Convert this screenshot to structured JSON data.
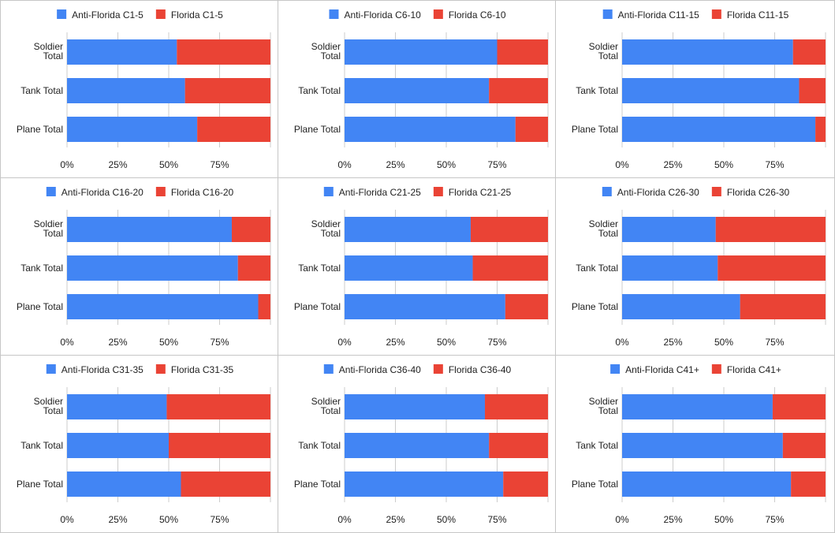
{
  "colors": {
    "anti": "#4285f4",
    "florida": "#ea4335",
    "grid": "#cccccc"
  },
  "chart_data": [
    {
      "type": "bar",
      "orientation": "horizontal",
      "stacked": "percent",
      "categories": [
        [
          "Soldier",
          "Total"
        ],
        [
          "Tank Total"
        ],
        [
          "Plane Total"
        ]
      ],
      "series": [
        {
          "name": "Anti-Florida C1-5",
          "values": [
            54,
            58,
            64
          ]
        },
        {
          "name": "Florida C1-5",
          "values": [
            46,
            42,
            36
          ]
        }
      ],
      "xticks": [
        "0%",
        "25%",
        "50%",
        "75%"
      ],
      "legend": "top"
    },
    {
      "type": "bar",
      "orientation": "horizontal",
      "stacked": "percent",
      "categories": [
        [
          "Soldier",
          "Total"
        ],
        [
          "Tank Total"
        ],
        [
          "Plane Total"
        ]
      ],
      "series": [
        {
          "name": "Anti-Florida C6-10",
          "values": [
            75,
            71,
            84
          ]
        },
        {
          "name": "Florida C6-10",
          "values": [
            25,
            29,
            16
          ]
        }
      ],
      "xticks": [
        "0%",
        "25%",
        "50%",
        "75%"
      ],
      "legend": "top"
    },
    {
      "type": "bar",
      "orientation": "horizontal",
      "stacked": "percent",
      "categories": [
        [
          "Soldier",
          "Total"
        ],
        [
          "Tank Total"
        ],
        [
          "Plane Total"
        ]
      ],
      "series": [
        {
          "name": "Anti-Florida C11-15",
          "values": [
            84,
            87,
            95
          ]
        },
        {
          "name": "Florida C11-15",
          "values": [
            16,
            13,
            5
          ]
        }
      ],
      "xticks": [
        "0%",
        "25%",
        "50%",
        "75%"
      ],
      "legend": "top"
    },
    {
      "type": "bar",
      "orientation": "horizontal",
      "stacked": "percent",
      "categories": [
        [
          "Soldier",
          "Total"
        ],
        [
          "Tank Total"
        ],
        [
          "Plane Total"
        ]
      ],
      "series": [
        {
          "name": "Anti-Florida C16-20",
          "values": [
            81,
            84,
            94
          ]
        },
        {
          "name": "Florida C16-20",
          "values": [
            19,
            16,
            6
          ]
        }
      ],
      "xticks": [
        "0%",
        "25%",
        "50%",
        "75%"
      ],
      "legend": "top"
    },
    {
      "type": "bar",
      "orientation": "horizontal",
      "stacked": "percent",
      "categories": [
        [
          "Soldier",
          "Total"
        ],
        [
          "Tank Total"
        ],
        [
          "Plane Total"
        ]
      ],
      "series": [
        {
          "name": "Anti-Florida C21-25",
          "values": [
            62,
            63,
            79
          ]
        },
        {
          "name": "Florida C21-25",
          "values": [
            38,
            37,
            21
          ]
        }
      ],
      "xticks": [
        "0%",
        "25%",
        "50%",
        "75%"
      ],
      "legend": "top"
    },
    {
      "type": "bar",
      "orientation": "horizontal",
      "stacked": "percent",
      "categories": [
        [
          "Soldier",
          "Total"
        ],
        [
          "Tank Total"
        ],
        [
          "Plane Total"
        ]
      ],
      "series": [
        {
          "name": "Anti-Florida C26-30",
          "values": [
            46,
            47,
            58
          ]
        },
        {
          "name": "Florida C26-30",
          "values": [
            54,
            53,
            42
          ]
        }
      ],
      "xticks": [
        "0%",
        "25%",
        "50%",
        "75%"
      ],
      "legend": "top"
    },
    {
      "type": "bar",
      "orientation": "horizontal",
      "stacked": "percent",
      "categories": [
        [
          "Soldier",
          "Total"
        ],
        [
          "Tank Total"
        ],
        [
          "Plane Total"
        ]
      ],
      "series": [
        {
          "name": "Anti-Florida C31-35",
          "values": [
            49,
            50,
            56
          ]
        },
        {
          "name": "Florida C31-35",
          "values": [
            51,
            50,
            44
          ]
        }
      ],
      "xticks": [
        "0%",
        "25%",
        "50%",
        "75%"
      ],
      "legend": "top"
    },
    {
      "type": "bar",
      "orientation": "horizontal",
      "stacked": "percent",
      "categories": [
        [
          "Soldier",
          "Total"
        ],
        [
          "Tank Total"
        ],
        [
          "Plane Total"
        ]
      ],
      "series": [
        {
          "name": "Anti-Florida C36-40",
          "values": [
            69,
            71,
            78
          ]
        },
        {
          "name": "Florida C36-40",
          "values": [
            31,
            29,
            22
          ]
        }
      ],
      "xticks": [
        "0%",
        "25%",
        "50%",
        "75%"
      ],
      "legend": "top"
    },
    {
      "type": "bar",
      "orientation": "horizontal",
      "stacked": "percent",
      "categories": [
        [
          "Soldier",
          "Total"
        ],
        [
          "Tank Total"
        ],
        [
          "Plane Total"
        ]
      ],
      "series": [
        {
          "name": "Anti-Florida C41+",
          "values": [
            74,
            79,
            83
          ]
        },
        {
          "name": "Florida C41+",
          "values": [
            26,
            21,
            17
          ]
        }
      ],
      "xticks": [
        "0%",
        "25%",
        "50%",
        "75%"
      ],
      "legend": "top"
    }
  ]
}
